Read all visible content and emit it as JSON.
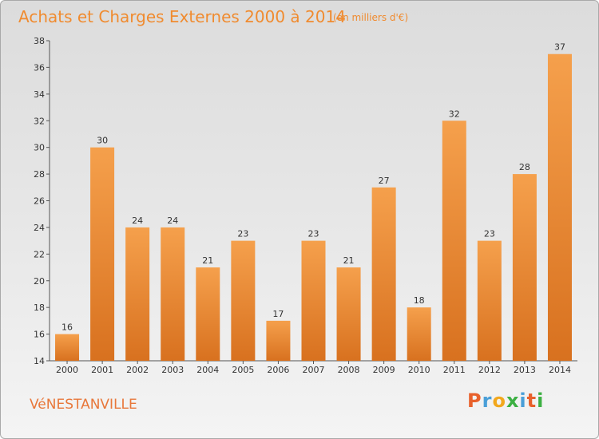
{
  "header": {
    "title": "Achats et Charges Externes 2000 à 2014",
    "subtitle": "(en milliers d'€)"
  },
  "footer": {
    "commune": "VéNESTANVILLE",
    "brand": {
      "text": "Proxiti",
      "letter_colors": [
        "#e8612c",
        "#4a9fd8",
        "#f2a81d",
        "#3cb043",
        "#4a9fd8",
        "#e8612c",
        "#3cb043"
      ]
    }
  },
  "colors": {
    "bar_light": "#f5a04c",
    "bar_dark": "#d8711f",
    "title": "#f08b2f",
    "axis": "#555555"
  },
  "chart_data": {
    "type": "bar",
    "title": "Achats et Charges Externes 2000 à 2014",
    "subtitle": "(en milliers d'€)",
    "categories": [
      "2000",
      "2001",
      "2002",
      "2003",
      "2004",
      "2005",
      "2006",
      "2007",
      "2008",
      "2009",
      "2010",
      "2011",
      "2012",
      "2013",
      "2014"
    ],
    "values": [
      16,
      30,
      24,
      24,
      21,
      23,
      17,
      23,
      21,
      27,
      18,
      32,
      23,
      28,
      37
    ],
    "ylim": [
      14,
      38
    ],
    "yticks": [
      14,
      16,
      18,
      20,
      22,
      24,
      26,
      28,
      30,
      32,
      34,
      36,
      38
    ],
    "grid": false,
    "legend": "none",
    "data_labels": true
  }
}
